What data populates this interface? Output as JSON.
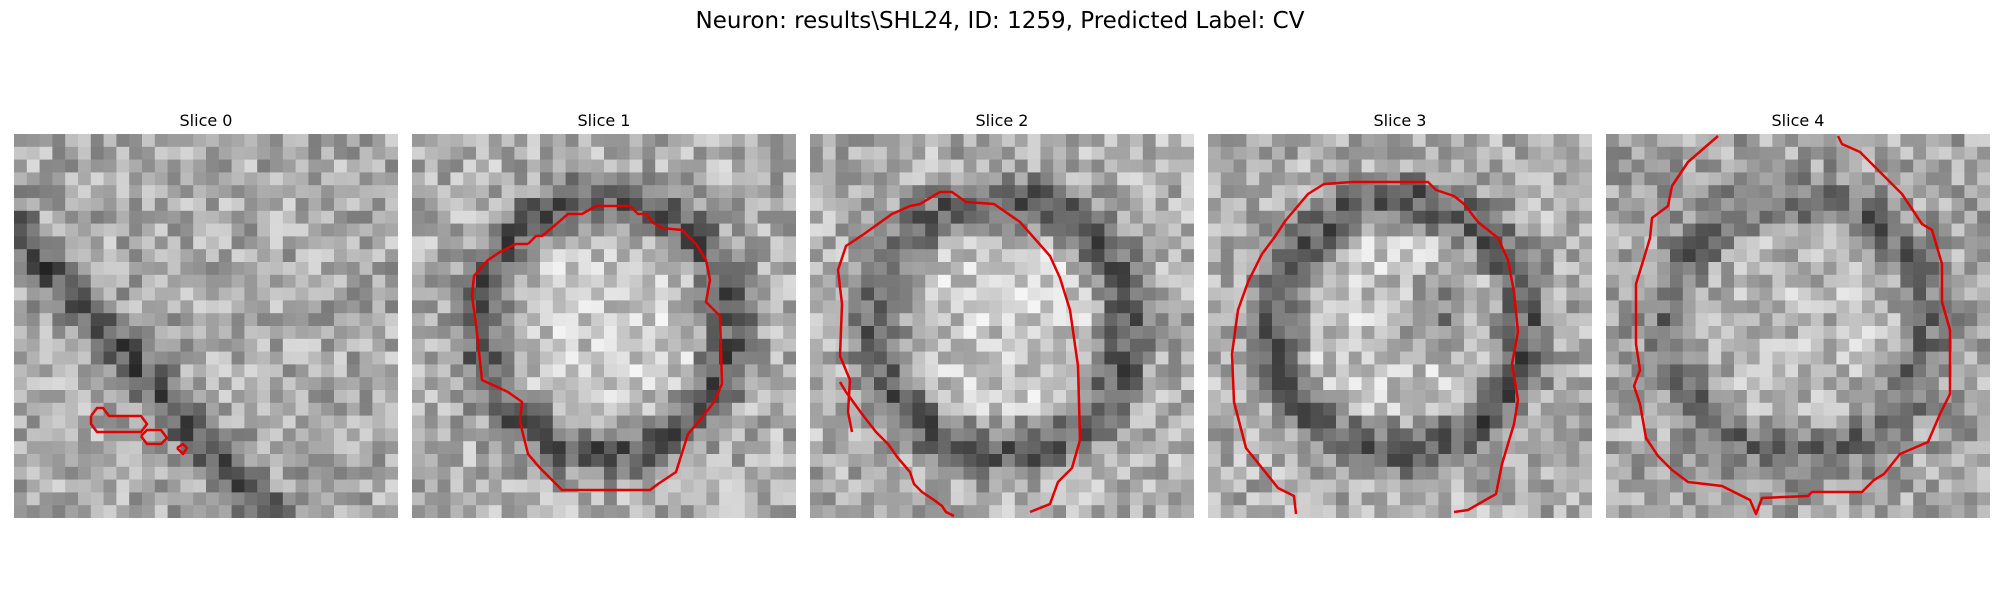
{
  "figure_title": "Neuron: results\\SHL24, ID: 1259, Predicted Label: CV",
  "contour_color": "#e00000",
  "slices": [
    {
      "label": "Slice 0",
      "seed": 11,
      "pattern": "diagonal-dark"
    },
    {
      "label": "Slice 1",
      "seed": 23,
      "pattern": "ring"
    },
    {
      "label": "Slice 2",
      "seed": 37,
      "pattern": "ring"
    },
    {
      "label": "Slice 3",
      "seed": 53,
      "pattern": "ring-dark-center"
    },
    {
      "label": "Slice 4",
      "seed": 71,
      "pattern": "ring-soft"
    }
  ]
}
